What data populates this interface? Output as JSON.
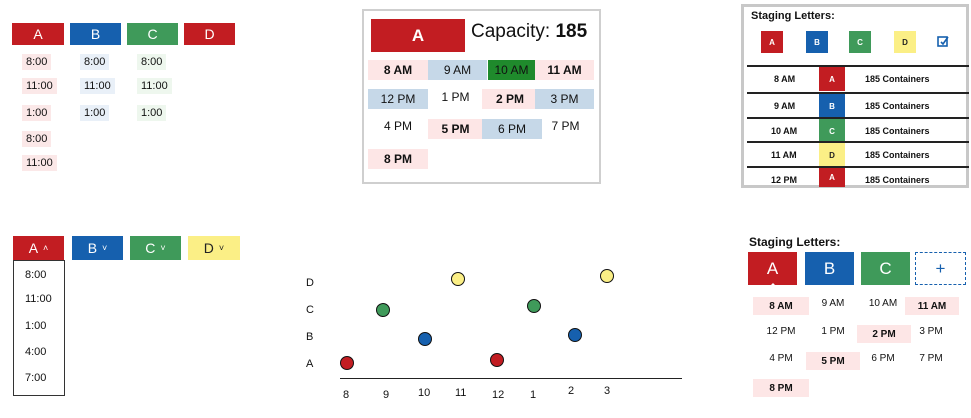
{
  "tabs_top": [
    "A",
    "B",
    "C",
    "D"
  ],
  "times_a": [
    "8:00",
    "11:00",
    "1:00",
    "8:00",
    "11:00"
  ],
  "times_b": [
    "8:00",
    "11:00",
    "1:00"
  ],
  "times_c": [
    "8:00",
    "11:00",
    "1:00"
  ],
  "card": {
    "letter": "A",
    "capacity_label": "Capacity:",
    "capacity_value": "185",
    "slots": [
      "8 AM",
      "9 AM",
      "10 AM",
      "11 AM",
      "12 PM",
      "1 PM",
      "2 PM",
      "3 PM",
      "4 PM",
      "5 PM",
      "6 PM",
      "7 PM",
      "8 PM"
    ]
  },
  "staging_top": {
    "title": "Staging Letters:",
    "letters": [
      "A",
      "B",
      "C",
      "D"
    ],
    "rows": [
      {
        "time": "8 AM",
        "letter": "A",
        "count": "185 Containers"
      },
      {
        "time": "9 AM",
        "letter": "B",
        "count": "185 Containers"
      },
      {
        "time": "10 AM",
        "letter": "C",
        "count": "185 Containers"
      },
      {
        "time": "11 AM",
        "letter": "D",
        "count": "185 Containers"
      },
      {
        "time": "12 PM",
        "letter": "A",
        "count": "185 Containers"
      }
    ]
  },
  "dropdowns": [
    "A",
    "B",
    "C",
    "D"
  ],
  "dropdown_options": [
    "8:00",
    "11:00",
    "1:00",
    "4:00",
    "7:00"
  ],
  "scatter": {
    "y_labels": [
      "D",
      "C",
      "B",
      "A"
    ],
    "x_labels": [
      "8",
      "9",
      "10",
      "11",
      "12",
      "1",
      "2",
      "3"
    ]
  },
  "staging_bottom": {
    "title": "Staging Letters:",
    "tabs": [
      "A",
      "B",
      "C",
      "+"
    ],
    "slots": [
      "8 AM",
      "9 AM",
      "10 AM",
      "11 AM",
      "12 PM",
      "1 PM",
      "2 PM",
      "3 PM",
      "4 PM",
      "5 PM",
      "6 PM",
      "7 PM",
      "8 PM"
    ]
  },
  "colors": {
    "red": "#c21d22",
    "blue": "#1660ae",
    "green": "#3f9a5a",
    "yellow": "#fbef86"
  }
}
